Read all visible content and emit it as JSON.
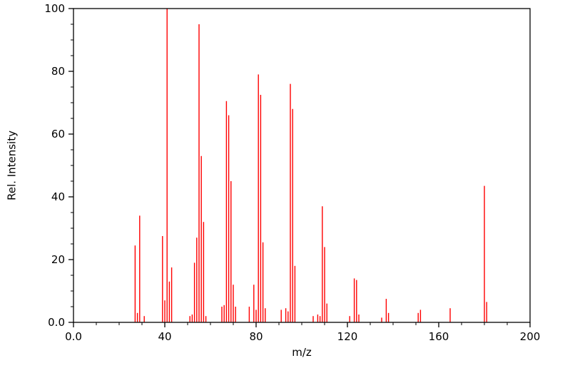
{
  "chart_data": {
    "type": "bar",
    "subtype": "mass-spectrum-stick-plot",
    "title": "",
    "xlabel": "m/z",
    "ylabel": "Rel. Intensity",
    "xlim": [
      0,
      200
    ],
    "ylim": [
      0,
      100
    ],
    "grid": false,
    "legend": false,
    "line_color": "#ff0000",
    "axis_color": "#000000",
    "x_ticks": [
      {
        "label": "0.0",
        "value": 0
      },
      {
        "label": "40",
        "value": 40
      },
      {
        "label": "80",
        "value": 80
      },
      {
        "label": "120",
        "value": 120
      },
      {
        "label": "160",
        "value": 160
      },
      {
        "label": "200",
        "value": 200
      }
    ],
    "y_ticks": [
      {
        "label": "0.0",
        "value": 0
      },
      {
        "label": "20",
        "value": 20
      },
      {
        "label": "40",
        "value": 40
      },
      {
        "label": "60",
        "value": 60
      },
      {
        "label": "80",
        "value": 80
      },
      {
        "label": "100",
        "value": 100
      }
    ],
    "x_minor_tick_step": 10,
    "y_minor_tick_step": 5,
    "peaks": [
      [
        27,
        24.5
      ],
      [
        28,
        3
      ],
      [
        29,
        34
      ],
      [
        31,
        2
      ],
      [
        39,
        27.5
      ],
      [
        40,
        7
      ],
      [
        41,
        100
      ],
      [
        42,
        13
      ],
      [
        43,
        17.5
      ],
      [
        51,
        2
      ],
      [
        52,
        2.5
      ],
      [
        53,
        19
      ],
      [
        54,
        27
      ],
      [
        55,
        95
      ],
      [
        56,
        53
      ],
      [
        57,
        32
      ],
      [
        58,
        2
      ],
      [
        65,
        5
      ],
      [
        66,
        5.5
      ],
      [
        67,
        70.5
      ],
      [
        68,
        66
      ],
      [
        69,
        45
      ],
      [
        70,
        12
      ],
      [
        71,
        5
      ],
      [
        77,
        5
      ],
      [
        79,
        12
      ],
      [
        80,
        4
      ],
      [
        81,
        79
      ],
      [
        82,
        72.5
      ],
      [
        83,
        25.5
      ],
      [
        84,
        4.5
      ],
      [
        91,
        4
      ],
      [
        93,
        4.5
      ],
      [
        94,
        3.5
      ],
      [
        95,
        76
      ],
      [
        96,
        68
      ],
      [
        97,
        18
      ],
      [
        105,
        2
      ],
      [
        107,
        2.5
      ],
      [
        108,
        2
      ],
      [
        109,
        37
      ],
      [
        110,
        24
      ],
      [
        111,
        6
      ],
      [
        121,
        2
      ],
      [
        123,
        14
      ],
      [
        124,
        13.5
      ],
      [
        125,
        2.5
      ],
      [
        135,
        1.5
      ],
      [
        137,
        7.5
      ],
      [
        138,
        3
      ],
      [
        151,
        3
      ],
      [
        152,
        4
      ],
      [
        165,
        4.5
      ],
      [
        180,
        43.5
      ],
      [
        181,
        6.5
      ]
    ]
  }
}
